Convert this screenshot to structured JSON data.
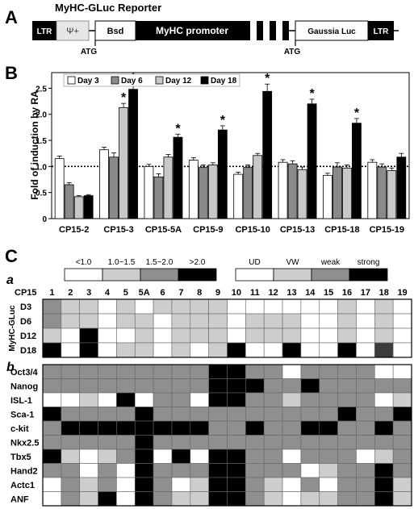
{
  "panel_a": {
    "letter": "A",
    "title": "MyHC-GLuc Reporter",
    "segments": [
      "LTR",
      "Ψ+",
      "Bsd",
      "MyHC promoter",
      "Gaussia Luc",
      "LTR"
    ],
    "atg_labels": [
      "ATG",
      "ATG"
    ]
  },
  "panel_b": {
    "letter": "B"
  },
  "panel_c": {
    "letter": "C",
    "sub_a": "a",
    "sub_b": "b",
    "legend_fold": [
      "<1.0",
      "1.0~1.5",
      "1.5~2.0",
      ">2.0"
    ],
    "legend_expr": [
      "UD",
      "VW",
      "weak",
      "strong"
    ],
    "clone_header": "CP15",
    "clones": [
      "1",
      "2",
      "3",
      "4",
      "5",
      "5A",
      "6",
      "7",
      "8",
      "9",
      "10",
      "11",
      "12",
      "13",
      "14",
      "15",
      "16",
      "17",
      "18",
      "19"
    ],
    "group_label": "MyHC-GLuc",
    "gluc_rows": [
      {
        "label": "D3",
        "cells": [
          2,
          1,
          1,
          0,
          1,
          0,
          1,
          1,
          1,
          1,
          0,
          0,
          0,
          0,
          0,
          0,
          1,
          0,
          1,
          0
        ]
      },
      {
        "label": "D6",
        "cells": [
          2,
          1,
          1,
          0,
          1,
          1,
          0,
          1,
          1,
          1,
          0,
          1,
          1,
          1,
          0,
          0,
          1,
          0,
          1,
          0
        ]
      },
      {
        "label": "D12",
        "cells": [
          1,
          0,
          3,
          0,
          0,
          1,
          0,
          1,
          1,
          1,
          0,
          1,
          1,
          1,
          0,
          0,
          1,
          0,
          1,
          0
        ]
      },
      {
        "label": "D18",
        "cells": [
          3,
          0,
          3,
          0,
          1,
          1,
          0,
          1,
          0,
          1,
          3,
          0,
          0,
          3,
          0,
          0,
          3,
          0,
          2,
          0
        ]
      }
    ],
    "marker_rows": [
      {
        "label": "Oct3/4",
        "cells": [
          2,
          2,
          2,
          2,
          2,
          2,
          2,
          2,
          2,
          3,
          3,
          2,
          2,
          0,
          2,
          2,
          2,
          2,
          0,
          0
        ]
      },
      {
        "label": "Nanog",
        "cells": [
          2,
          2,
          2,
          2,
          2,
          2,
          2,
          2,
          2,
          3,
          3,
          3,
          2,
          2,
          3,
          2,
          2,
          2,
          2,
          2
        ]
      },
      {
        "label": "ISL-1",
        "cells": [
          0,
          0,
          1,
          0,
          3,
          0,
          2,
          2,
          0,
          3,
          3,
          2,
          2,
          1,
          2,
          2,
          2,
          2,
          0,
          1
        ]
      },
      {
        "label": "Sca-1",
        "cells": [
          3,
          2,
          2,
          2,
          2,
          3,
          2,
          2,
          2,
          2,
          2,
          2,
          2,
          2,
          2,
          2,
          3,
          2,
          2,
          3
        ]
      },
      {
        "label": "c-kit",
        "cells": [
          2,
          3,
          3,
          3,
          3,
          3,
          3,
          3,
          3,
          2,
          2,
          3,
          2,
          2,
          3,
          3,
          2,
          2,
          3,
          2
        ]
      },
      {
        "label": "Nkx2.5",
        "cells": [
          2,
          2,
          2,
          2,
          2,
          3,
          2,
          2,
          2,
          2,
          2,
          2,
          2,
          2,
          2,
          2,
          2,
          2,
          2,
          2
        ]
      },
      {
        "label": "Tbx5",
        "cells": [
          3,
          1,
          0,
          1,
          2,
          3,
          0,
          3,
          0,
          3,
          3,
          2,
          2,
          0,
          2,
          2,
          2,
          0,
          1,
          2
        ]
      },
      {
        "label": "Hand2",
        "cells": [
          2,
          2,
          0,
          2,
          0,
          3,
          2,
          2,
          2,
          3,
          3,
          2,
          2,
          2,
          0,
          1,
          2,
          2,
          3,
          2
        ]
      },
      {
        "label": "Actc1",
        "cells": [
          0,
          2,
          1,
          2,
          0,
          3,
          2,
          0,
          1,
          3,
          3,
          2,
          1,
          0,
          2,
          0,
          2,
          2,
          3,
          1
        ]
      },
      {
        "label": "ANF",
        "cells": [
          0,
          2,
          1,
          3,
          0,
          3,
          2,
          1,
          1,
          3,
          3,
          2,
          1,
          0,
          1,
          1,
          2,
          2,
          3,
          1
        ]
      }
    ],
    "heat_colors": [
      "#ffffff",
      "#cdcdcd",
      "#8f8f8f",
      "#000000"
    ],
    "special_cells": [
      {
        "row": "D18",
        "col": "18",
        "color": "#3c3c3c"
      }
    ]
  },
  "chart_data": {
    "type": "bar",
    "ylabel": "Fold of induction by RA",
    "ylim": [
      0,
      2.8
    ],
    "yticks": [
      "0",
      "0.5",
      "1.0",
      "1.5",
      "2.0",
      "2.5"
    ],
    "reference_line": 1.0,
    "legend_position": "top-left",
    "categories": [
      "CP15-2",
      "CP15-3",
      "CP15-5A",
      "CP15-9",
      "CP15-10",
      "CP15-13",
      "CP15-18",
      "CP15-19"
    ],
    "series": [
      {
        "name": "Day 3",
        "color": "#ffffff",
        "values": [
          1.15,
          1.32,
          1.0,
          1.12,
          0.85,
          1.08,
          0.83,
          1.08
        ],
        "errors": [
          0.05,
          0.05,
          0.04,
          0.05,
          0.04,
          0.05,
          0.04,
          0.05
        ]
      },
      {
        "name": "Day 6",
        "color": "#8a8a8a",
        "values": [
          0.65,
          1.18,
          0.8,
          0.98,
          0.98,
          1.05,
          0.99,
          0.99
        ],
        "errors": [
          0.04,
          0.08,
          0.06,
          0.05,
          0.05,
          0.06,
          0.08,
          0.06
        ]
      },
      {
        "name": "Day 12",
        "color": "#c8c8c8",
        "values": [
          0.42,
          2.13,
          1.18,
          1.03,
          1.21,
          0.94,
          0.97,
          0.92
        ],
        "errors": [
          0.02,
          0.08,
          0.05,
          0.04,
          0.04,
          0.05,
          0.06,
          0.05
        ]
      },
      {
        "name": "Day 18",
        "color": "#000000",
        "values": [
          0.44,
          2.48,
          1.56,
          1.7,
          2.44,
          2.2,
          1.83,
          1.18
        ],
        "errors": [
          0.02,
          0.12,
          0.06,
          0.08,
          0.14,
          0.09,
          0.09,
          0.07
        ]
      }
    ],
    "significance": [
      {
        "category": "CP15-3",
        "series": "Day 12",
        "mark": "*"
      },
      {
        "category": "CP15-3",
        "series": "Day 18",
        "mark": "*"
      },
      {
        "category": "CP15-5A",
        "series": "Day 18",
        "mark": "*"
      },
      {
        "category": "CP15-9",
        "series": "Day 18",
        "mark": "*"
      },
      {
        "category": "CP15-10",
        "series": "Day 18",
        "mark": "*"
      },
      {
        "category": "CP15-13",
        "series": "Day 18",
        "mark": "*"
      },
      {
        "category": "CP15-18",
        "series": "Day 18",
        "mark": "*"
      }
    ]
  }
}
